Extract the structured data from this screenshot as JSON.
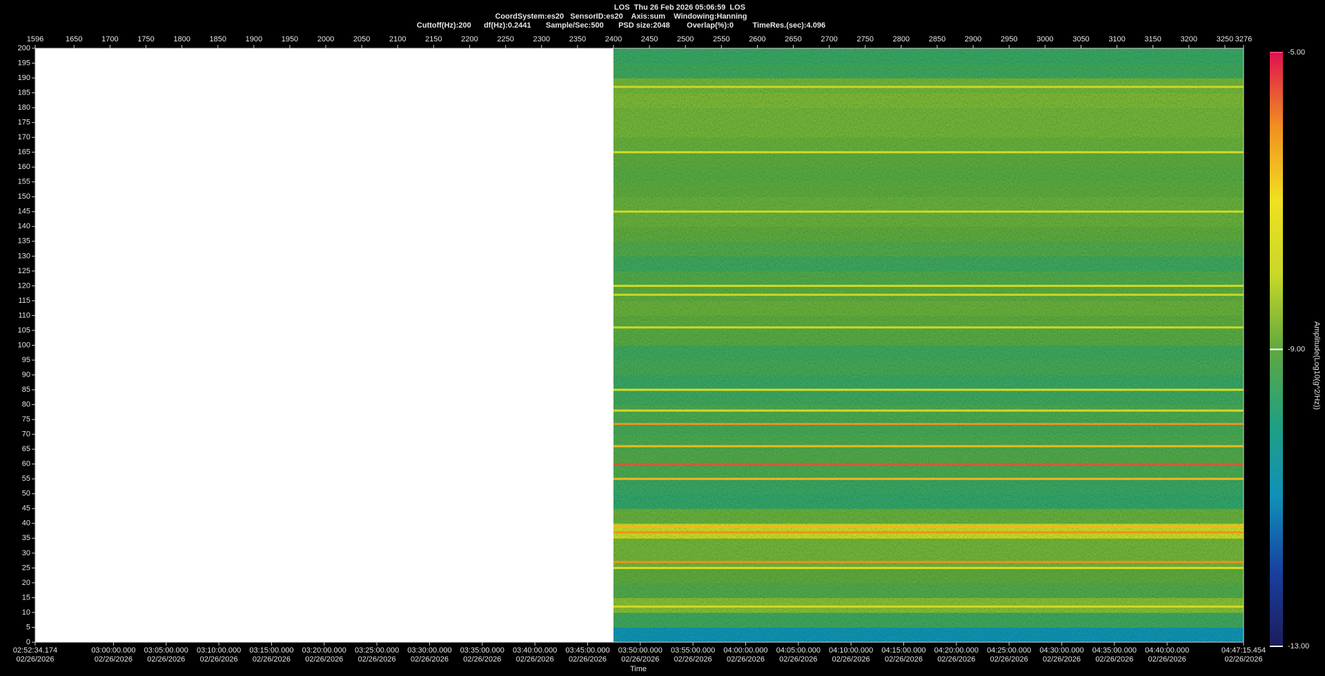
{
  "chart_data": {
    "type": "heatmap",
    "title": "LOS  Thu 26 Feb 2026 05:06:59  LOS",
    "subtitle": "CoordSystem:es20   SensorID:es20    Axis:sum    Windowing:Hanning",
    "subtitle2": "Cuttoff(Hz):200      df(Hz):0.2441       Sample/Sec:500       PSD size:2048        Overlap(%):0         TimeRes.(sec):4.096",
    "xlabel": "Time",
    "colorbar_label": "Amplitude(Log10(g^2/Hz))",
    "xlim": [
      1596,
      3276
    ],
    "xticks": [
      1596,
      1650,
      1700,
      1750,
      1800,
      1850,
      1900,
      1950,
      2000,
      2050,
      2100,
      2150,
      2200,
      2250,
      2300,
      2350,
      2400,
      2450,
      2500,
      2550,
      2600,
      2650,
      2700,
      2750,
      2800,
      2850,
      2900,
      2950,
      3000,
      3050,
      3100,
      3150,
      3200,
      3250,
      3276
    ],
    "ylim": [
      0,
      200
    ],
    "yticks": [
      0,
      5,
      10,
      15,
      20,
      25,
      30,
      35,
      40,
      45,
      50,
      55,
      60,
      65,
      70,
      75,
      80,
      85,
      90,
      95,
      100,
      105,
      110,
      115,
      120,
      125,
      130,
      135,
      140,
      145,
      150,
      155,
      160,
      165,
      170,
      175,
      180,
      185,
      190,
      195,
      200
    ],
    "x2lim": [
      10354.174,
      17235.454
    ],
    "x2tick_date": "02/26/2026",
    "x2ticks": [
      {
        "value": 10354.174,
        "label": "02:52:34.174"
      },
      {
        "value": 10800,
        "label": "03:00:00.000"
      },
      {
        "value": 11100,
        "label": "03:05:00.000"
      },
      {
        "value": 11400,
        "label": "03:10:00.000"
      },
      {
        "value": 11700,
        "label": "03:15:00.000"
      },
      {
        "value": 12000,
        "label": "03:20:00.000"
      },
      {
        "value": 12300,
        "label": "03:25:00.000"
      },
      {
        "value": 12600,
        "label": "03:30:00.000"
      },
      {
        "value": 12900,
        "label": "03:35:00.000"
      },
      {
        "value": 13200,
        "label": "03:40:00.000"
      },
      {
        "value": 13500,
        "label": "03:45:00.000"
      },
      {
        "value": 13800,
        "label": "03:50:00.000"
      },
      {
        "value": 14100,
        "label": "03:55:00.000"
      },
      {
        "value": 14400,
        "label": "04:00:00.000"
      },
      {
        "value": 14700,
        "label": "04:05:00.000"
      },
      {
        "value": 15000,
        "label": "04:10:00.000"
      },
      {
        "value": 15300,
        "label": "04:15:00.000"
      },
      {
        "value": 15600,
        "label": "04:20:00.000"
      },
      {
        "value": 15900,
        "label": "04:25:00.000"
      },
      {
        "value": 16200,
        "label": "04:30:00.000"
      },
      {
        "value": 16500,
        "label": "04:35:00.000"
      },
      {
        "value": 16800,
        "label": "04:40:00.000"
      },
      {
        "value": 17235.454,
        "label": "04:47:15.454"
      }
    ],
    "clim": [
      -13,
      -5
    ],
    "cticks": [
      {
        "value": -5,
        "label": "-5.00"
      },
      {
        "value": -9,
        "label": "-9.00"
      },
      {
        "value": -13,
        "label": "-13.00"
      }
    ],
    "colormap": [
      "#1c1c5a",
      "#1840a0",
      "#1090b8",
      "#20a080",
      "#60a840",
      "#c8d828",
      "#f0e020",
      "#f09020",
      "#e01050"
    ],
    "x": [
      2400,
      3276
    ],
    "y": [
      0,
      5,
      10,
      15,
      20,
      25,
      30,
      35,
      40,
      45,
      50,
      55,
      60,
      65,
      70,
      75,
      80,
      85,
      90,
      95,
      100,
      105,
      110,
      115,
      120,
      125,
      130,
      135,
      140,
      145,
      150,
      155,
      160,
      165,
      170,
      175,
      180,
      185,
      190,
      195,
      200
    ],
    "z": [
      -11.0,
      -9.5,
      -8.6,
      -9.2,
      -9.0,
      -8.8,
      -8.8,
      -7.8,
      -8.9,
      -9.7,
      -9.6,
      -9.3,
      -9.2,
      -9.3,
      -9.4,
      -9.3,
      -9.5,
      -9.6,
      -9.4,
      -9.5,
      -9.1,
      -9.0,
      -8.9,
      -9.0,
      -9.2,
      -9.5,
      -9.2,
      -9.0,
      -8.9,
      -8.9,
      -9.0,
      -9.1,
      -9.0,
      -8.9,
      -8.8,
      -8.8,
      -8.7,
      -8.8,
      -9.5,
      -9.6
    ],
    "lines": [
      {
        "y": 187,
        "value": -8.0
      },
      {
        "y": 165,
        "value": -7.8
      },
      {
        "y": 145,
        "value": -7.8
      },
      {
        "y": 120,
        "value": -7.8
      },
      {
        "y": 117,
        "value": -8.0
      },
      {
        "y": 106,
        "value": -8.0
      },
      {
        "y": 85,
        "value": -7.5
      },
      {
        "y": 78,
        "value": -7.8
      },
      {
        "y": 73.5,
        "value": -6.0
      },
      {
        "y": 66,
        "value": -6.5
      },
      {
        "y": 60,
        "value": -5.5
      },
      {
        "y": 55,
        "value": -6.5
      },
      {
        "y": 39,
        "value": -6.5
      },
      {
        "y": 37,
        "value": -6.0
      },
      {
        "y": 27,
        "value": -6.0
      },
      {
        "y": 25,
        "value": -7.5
      },
      {
        "y": 12,
        "value": -7.8
      }
    ]
  }
}
